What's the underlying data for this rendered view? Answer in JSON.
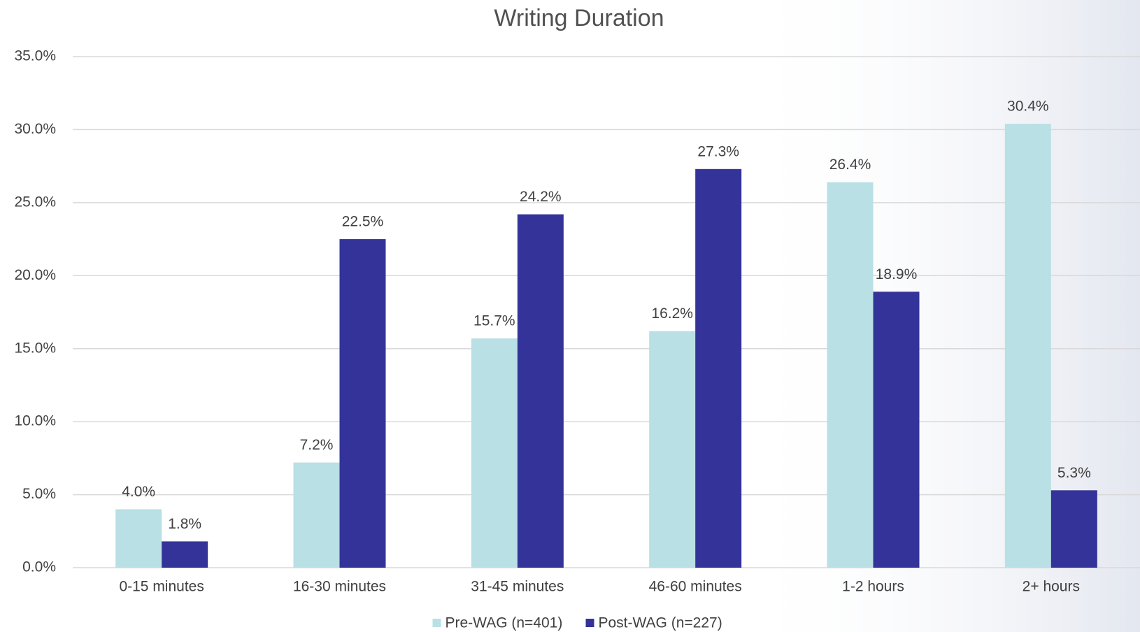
{
  "chart_data": {
    "type": "bar",
    "title": "Writing Duration",
    "categories": [
      "0-15 minutes",
      "16-30 minutes",
      "31-45 minutes",
      "46-60 minutes",
      "1-2 hours",
      "2+ hours"
    ],
    "series": [
      {
        "name": "Pre-WAG (n=401)",
        "color": "#b9e0e4",
        "values": [
          4.0,
          7.2,
          15.7,
          16.2,
          26.4,
          30.4
        ],
        "value_labels": [
          "4.0%",
          "7.2%",
          "15.7%",
          "16.2%",
          "26.4%",
          "30.4%"
        ]
      },
      {
        "name": "Post-WAG (n=227)",
        "color": "#333399",
        "values": [
          1.8,
          22.5,
          24.2,
          27.3,
          18.9,
          5.3
        ],
        "value_labels": [
          "1.8%",
          "22.5%",
          "24.2%",
          "27.3%",
          "18.9%",
          "5.3%"
        ]
      }
    ],
    "ylim": [
      0,
      35
    ],
    "yticks": [
      {
        "value": 0,
        "label": "0.0%"
      },
      {
        "value": 5,
        "label": "5.0%"
      },
      {
        "value": 10,
        "label": "10.0%"
      },
      {
        "value": 15,
        "label": "15.0%"
      },
      {
        "value": 20,
        "label": "20.0%"
      },
      {
        "value": 25,
        "label": "25.0%"
      },
      {
        "value": 30,
        "label": "30.0%"
      },
      {
        "value": 35,
        "label": "35.0%"
      }
    ],
    "grid": true,
    "legend": "bottom"
  }
}
